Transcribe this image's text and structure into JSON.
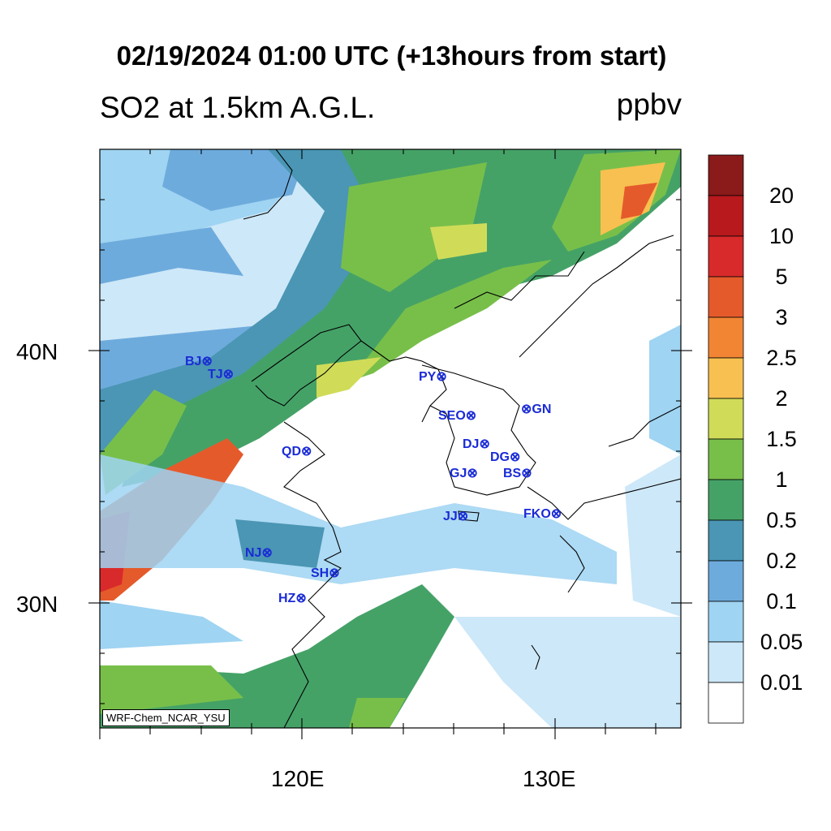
{
  "title": "02/19/2024 01:00 UTC (+13hours from start)",
  "subtitle": "SO2 at 1.5km A.G.L.",
  "units": "ppbv",
  "credit": "WRF-Chem_NCAR_YSU",
  "axes": {
    "lat_labels": [
      "40N",
      "30N"
    ],
    "lon_labels": [
      "120E",
      "130E"
    ]
  },
  "colorbar": {
    "levels": [
      "20",
      "10",
      "5",
      "3",
      "2.5",
      "2",
      "1.5",
      "1",
      "0.5",
      "0.2",
      "0.1",
      "0.05",
      "0.01"
    ],
    "colors": [
      "#8b1a1a",
      "#b8191d",
      "#d92a2b",
      "#e55a2b",
      "#f28534",
      "#f8c050",
      "#d0dc58",
      "#78bf4a",
      "#45a267",
      "#4a96b4",
      "#6eabdd",
      "#9fd4f2",
      "#cde8f8",
      "#ffffff"
    ]
  },
  "stations": [
    {
      "id": "BJ",
      "label": "BJ⊗"
    },
    {
      "id": "TJ",
      "label": "TJ⊗"
    },
    {
      "id": "PY",
      "label": "PY⊗"
    },
    {
      "id": "SEO",
      "label": "SEO⊗"
    },
    {
      "id": "GN",
      "label": "⊗GN"
    },
    {
      "id": "QD",
      "label": "QD⊗"
    },
    {
      "id": "DJ",
      "label": "DJ⊗"
    },
    {
      "id": "DG",
      "label": "DG⊗"
    },
    {
      "id": "GJ",
      "label": "GJ⊗"
    },
    {
      "id": "BS",
      "label": "BS⊗"
    },
    {
      "id": "JJ",
      "label": "JJ⊗"
    },
    {
      "id": "FKO",
      "label": "FKO⊗"
    },
    {
      "id": "NJ",
      "label": "NJ⊗"
    },
    {
      "id": "SH",
      "label": "SH⊗"
    },
    {
      "id": "HZ",
      "label": "HZ⊗"
    }
  ]
}
